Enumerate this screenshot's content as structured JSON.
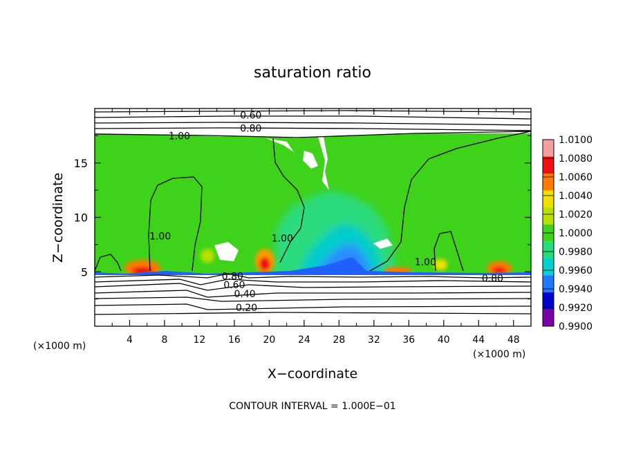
{
  "chart_data": {
    "type": "heatmap",
    "title": "saturation ratio",
    "xlabel": "X−coordinate",
    "ylabel": "Z−coordinate",
    "x_unit_label": "(×1000 m)",
    "z_unit_label": "(×1000 m)",
    "footer": "CONTOUR INTERVAL = 1.000E−01",
    "xlim": [
      0,
      50
    ],
    "ylim": [
      0,
      20
    ],
    "x_ticks": [
      4,
      8,
      12,
      16,
      20,
      24,
      28,
      32,
      36,
      40,
      44,
      48
    ],
    "x_tick_labels": [
      "4",
      "8",
      "12",
      "16",
      "20",
      "24",
      "28",
      "32",
      "36",
      "40",
      "44",
      "48"
    ],
    "y_ticks": [
      5,
      10,
      15
    ],
    "y_tick_labels": [
      "5",
      "10",
      "15"
    ],
    "colorbar": {
      "levels": [
        0.99,
        0.992,
        0.994,
        0.996,
        0.998,
        1.0,
        1.002,
        1.004,
        1.006,
        1.008,
        1.01
      ],
      "labels": [
        "0.9900",
        "0.9920",
        "0.9940",
        "0.9960",
        "0.9980",
        "1.0000",
        "1.0020",
        "1.0040",
        "1.0060",
        "1.0080",
        "1.0100"
      ],
      "colors": [
        "#7a00a8",
        "#0000cc",
        "#1f78ff",
        "#00d0d0",
        "#25dc7a",
        "#3fd21a",
        "#b8e000",
        "#f0e000",
        "#ff7a00",
        "#ee1010",
        "#f2a0a0"
      ]
    },
    "contour_labels": [
      {
        "text": "0.60",
        "x": 17.9,
        "y": 19.4
      },
      {
        "text": "0.80",
        "x": 17.9,
        "y": 18.2
      },
      {
        "text": "1.00",
        "x": 9.7,
        "y": 17.5
      },
      {
        "text": "1.00",
        "x": 7.5,
        "y": 8.3
      },
      {
        "text": "1.00",
        "x": 21.5,
        "y": 8.1
      },
      {
        "text": "1.00",
        "x": 37.9,
        "y": 5.9
      },
      {
        "text": "0.80",
        "x": 15.8,
        "y": 4.6
      },
      {
        "text": "0.60",
        "x": 16.0,
        "y": 3.8
      },
      {
        "text": "0.40",
        "x": 17.2,
        "y": 3.0
      },
      {
        "text": "0.20",
        "x": 17.4,
        "y": 1.7
      },
      {
        "text": "0.80",
        "x": 45.6,
        "y": 4.4
      }
    ]
  }
}
